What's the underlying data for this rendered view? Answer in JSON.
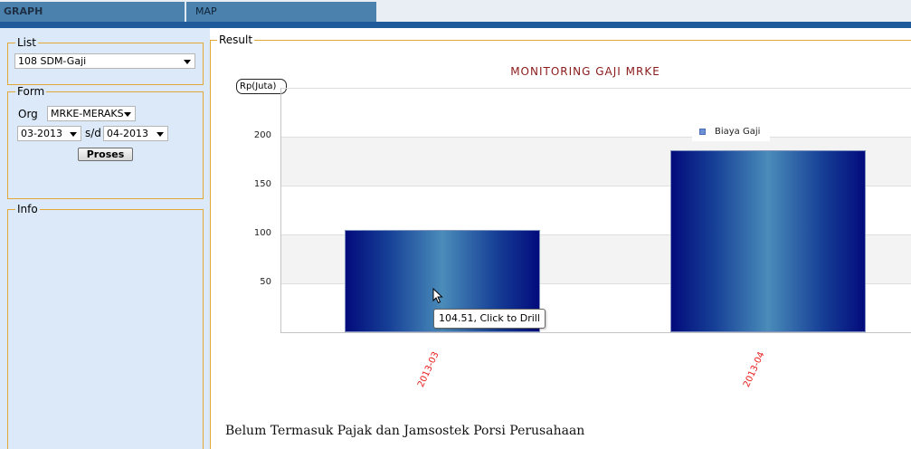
{
  "tabs": [
    {
      "label": "GRAPH"
    },
    {
      "label": "MAP"
    }
  ],
  "list": {
    "legend": "List",
    "selected": "108 SDM-Gaji"
  },
  "form": {
    "legend": "Form",
    "org_label": "Org",
    "org_value": "MRKE-MERAKS",
    "from_value": "03-2013",
    "to_label": "s/d",
    "to_value": "04-2013",
    "submit_label": "Proses"
  },
  "info": {
    "legend": "Info"
  },
  "result": {
    "legend": "Result",
    "tooltip": "104.51, Click to Drill",
    "note": "Belum Termasuk Pajak dan Jamsostek Porsi Perusahaan"
  },
  "chart_data": {
    "type": "bar",
    "title": "MONITORING GAJI MRKE",
    "ylabel": "Rp(Juta)",
    "xlabel": "",
    "categories": [
      "2013-03",
      "2013-04"
    ],
    "series": [
      {
        "name": "Biaya Gaji",
        "values": [
          104.51,
          186
        ],
        "color": "#0a1a8a"
      }
    ],
    "yticks": [
      50,
      100,
      150,
      200
    ],
    "ylim": [
      0,
      250
    ],
    "grid": true,
    "legend_position": "top-right"
  }
}
